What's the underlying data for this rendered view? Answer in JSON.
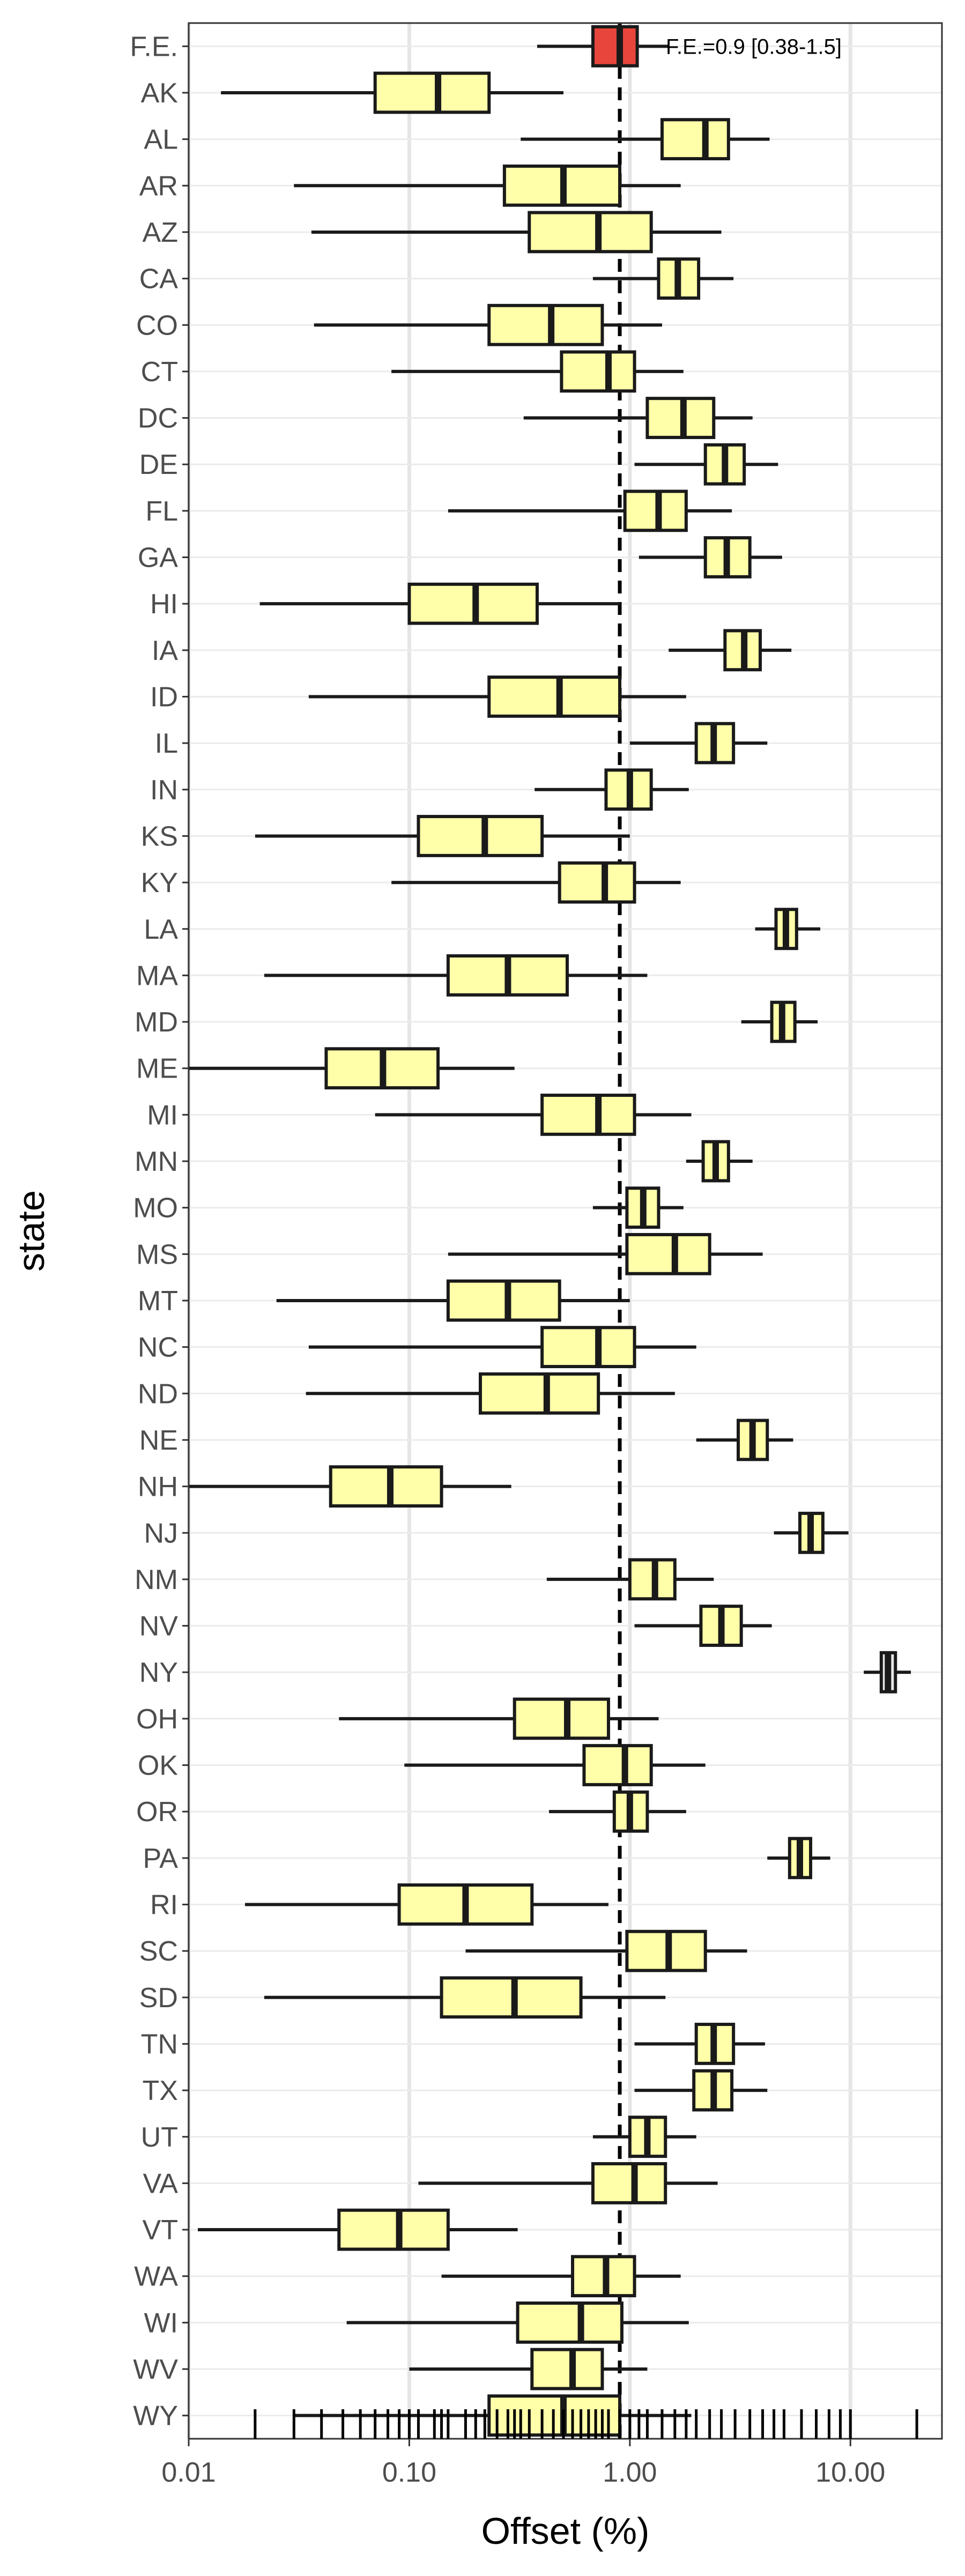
{
  "chart_data": {
    "type": "boxplot",
    "title": "",
    "xlabel": "Offset (%)",
    "ylabel": "state",
    "x_scale": "log10",
    "xlim": [
      0.01,
      26
    ],
    "x_ticks": [
      0.01,
      0.1,
      1,
      10
    ],
    "x_tick_labels": [
      "0.01",
      "0.10",
      "1.00",
      "10.00"
    ],
    "grid": true,
    "reference_line": {
      "x": 0.9,
      "style": "dashed"
    },
    "fe_annotation": "F.E.=0.9 [0.38-1.5]",
    "box_fill": "#ffffaa",
    "fe_fill": "#e8453c",
    "ny_fill": "#e8e8e8",
    "categories": [
      "F.E.",
      "AK",
      "AL",
      "AR",
      "AZ",
      "CA",
      "CO",
      "CT",
      "DC",
      "DE",
      "FL",
      "GA",
      "HI",
      "IA",
      "ID",
      "IL",
      "IN",
      "KS",
      "KY",
      "LA",
      "MA",
      "MD",
      "ME",
      "MI",
      "MN",
      "MO",
      "MS",
      "MT",
      "NC",
      "ND",
      "NE",
      "NH",
      "NJ",
      "NM",
      "NV",
      "NY",
      "OH",
      "OK",
      "OR",
      "PA",
      "RI",
      "SC",
      "SD",
      "TN",
      "TX",
      "UT",
      "VA",
      "VT",
      "WA",
      "WI",
      "WV",
      "WY"
    ],
    "boxes": [
      {
        "state": "F.E.",
        "whisker_low": 0.38,
        "q1": 0.68,
        "median": 0.9,
        "q3": 1.08,
        "whisker_high": 1.5
      },
      {
        "state": "AK",
        "whisker_low": 0.014,
        "q1": 0.07,
        "median": 0.135,
        "q3": 0.23,
        "whisker_high": 0.5
      },
      {
        "state": "AL",
        "whisker_low": 0.32,
        "q1": 1.4,
        "median": 2.2,
        "q3": 2.8,
        "whisker_high": 4.3
      },
      {
        "state": "AR",
        "whisker_low": 0.03,
        "q1": 0.27,
        "median": 0.5,
        "q3": 0.9,
        "whisker_high": 1.7
      },
      {
        "state": "AZ",
        "whisker_low": 0.036,
        "q1": 0.35,
        "median": 0.72,
        "q3": 1.25,
        "whisker_high": 2.6
      },
      {
        "state": "CA",
        "whisker_low": 0.68,
        "q1": 1.35,
        "median": 1.65,
        "q3": 2.05,
        "whisker_high": 2.95
      },
      {
        "state": "CO",
        "whisker_low": 0.037,
        "q1": 0.23,
        "median": 0.44,
        "q3": 0.75,
        "whisker_high": 1.4
      },
      {
        "state": "CT",
        "whisker_low": 0.083,
        "q1": 0.49,
        "median": 0.8,
        "q3": 1.05,
        "whisker_high": 1.75
      },
      {
        "state": "DC",
        "whisker_low": 0.33,
        "q1": 1.2,
        "median": 1.75,
        "q3": 2.4,
        "whisker_high": 3.6
      },
      {
        "state": "DE",
        "whisker_low": 1.05,
        "q1": 2.2,
        "median": 2.7,
        "q3": 3.3,
        "whisker_high": 4.7
      },
      {
        "state": "FL",
        "whisker_low": 0.15,
        "q1": 0.95,
        "median": 1.35,
        "q3": 1.8,
        "whisker_high": 2.9
      },
      {
        "state": "GA",
        "whisker_low": 1.1,
        "q1": 2.2,
        "median": 2.75,
        "q3": 3.5,
        "whisker_high": 4.9
      },
      {
        "state": "HI",
        "whisker_low": 0.021,
        "q1": 0.1,
        "median": 0.2,
        "q3": 0.38,
        "whisker_high": 0.9
      },
      {
        "state": "IA",
        "whisker_low": 1.5,
        "q1": 2.7,
        "median": 3.3,
        "q3": 3.9,
        "whisker_high": 5.4
      },
      {
        "state": "ID",
        "whisker_low": 0.035,
        "q1": 0.23,
        "median": 0.48,
        "q3": 0.9,
        "whisker_high": 1.8
      },
      {
        "state": "IL",
        "whisker_low": 1.0,
        "q1": 2.0,
        "median": 2.4,
        "q3": 2.95,
        "whisker_high": 4.2
      },
      {
        "state": "IN",
        "whisker_low": 0.37,
        "q1": 0.78,
        "median": 1.0,
        "q3": 1.25,
        "whisker_high": 1.85
      },
      {
        "state": "KS",
        "whisker_low": 0.02,
        "q1": 0.11,
        "median": 0.22,
        "q3": 0.4,
        "whisker_high": 1.0
      },
      {
        "state": "KY",
        "whisker_low": 0.083,
        "q1": 0.48,
        "median": 0.77,
        "q3": 1.05,
        "whisker_high": 1.7
      },
      {
        "state": "LA",
        "whisker_low": 3.7,
        "q1": 4.6,
        "median": 5.1,
        "q3": 5.7,
        "whisker_high": 7.3
      },
      {
        "state": "MA",
        "whisker_low": 0.022,
        "q1": 0.15,
        "median": 0.28,
        "q3": 0.52,
        "whisker_high": 1.2
      },
      {
        "state": "MD",
        "whisker_low": 3.2,
        "q1": 4.4,
        "median": 4.9,
        "q3": 5.6,
        "whisker_high": 7.1
      },
      {
        "state": "ME",
        "whisker_low": 0.01,
        "q1": 0.042,
        "median": 0.076,
        "q3": 0.135,
        "whisker_high": 0.3
      },
      {
        "state": "MI",
        "whisker_low": 0.07,
        "q1": 0.4,
        "median": 0.72,
        "q3": 1.05,
        "whisker_high": 1.9
      },
      {
        "state": "MN",
        "whisker_low": 1.8,
        "q1": 2.15,
        "median": 2.45,
        "q3": 2.8,
        "whisker_high": 3.6
      },
      {
        "state": "MO",
        "whisker_low": 0.68,
        "q1": 0.97,
        "median": 1.15,
        "q3": 1.35,
        "whisker_high": 1.75
      },
      {
        "state": "MS",
        "whisker_low": 0.15,
        "q1": 0.97,
        "median": 1.6,
        "q3": 2.3,
        "whisker_high": 4.0
      },
      {
        "state": "MT",
        "whisker_low": 0.025,
        "q1": 0.15,
        "median": 0.28,
        "q3": 0.48,
        "whisker_high": 1.0
      },
      {
        "state": "NC",
        "whisker_low": 0.035,
        "q1": 0.4,
        "median": 0.72,
        "q3": 1.05,
        "whisker_high": 2.0
      },
      {
        "state": "ND",
        "whisker_low": 0.034,
        "q1": 0.21,
        "median": 0.42,
        "q3": 0.72,
        "whisker_high": 1.6
      },
      {
        "state": "NE",
        "whisker_low": 2.0,
        "q1": 3.1,
        "median": 3.6,
        "q3": 4.2,
        "whisker_high": 5.5
      },
      {
        "state": "NH",
        "whisker_low": 0.01,
        "q1": 0.044,
        "median": 0.082,
        "q3": 0.14,
        "whisker_high": 0.29
      },
      {
        "state": "NJ",
        "whisker_low": 4.5,
        "q1": 5.9,
        "median": 6.6,
        "q3": 7.5,
        "whisker_high": 9.8
      },
      {
        "state": "NM",
        "whisker_low": 0.42,
        "q1": 1.0,
        "median": 1.3,
        "q3": 1.6,
        "whisker_high": 2.4
      },
      {
        "state": "NV",
        "whisker_low": 1.05,
        "q1": 2.1,
        "median": 2.6,
        "q3": 3.2,
        "whisker_high": 4.4
      },
      {
        "state": "NY",
        "whisker_low": 11.5,
        "q1": 13.8,
        "median": 14.8,
        "q3": 16.0,
        "whisker_high": 18.8
      },
      {
        "state": "OH",
        "whisker_low": 0.048,
        "q1": 0.3,
        "median": 0.52,
        "q3": 0.8,
        "whisker_high": 1.35
      },
      {
        "state": "OK",
        "whisker_low": 0.095,
        "q1": 0.62,
        "median": 0.95,
        "q3": 1.25,
        "whisker_high": 2.2
      },
      {
        "state": "OR",
        "whisker_low": 0.43,
        "q1": 0.85,
        "median": 1.0,
        "q3": 1.2,
        "whisker_high": 1.8
      },
      {
        "state": "PA",
        "whisker_low": 4.2,
        "q1": 5.3,
        "median": 5.9,
        "q3": 6.6,
        "whisker_high": 8.1
      },
      {
        "state": "RI",
        "whisker_low": 0.018,
        "q1": 0.09,
        "median": 0.18,
        "q3": 0.36,
        "whisker_high": 0.8
      },
      {
        "state": "SC",
        "whisker_low": 0.18,
        "q1": 0.97,
        "median": 1.5,
        "q3": 2.2,
        "whisker_high": 3.4
      },
      {
        "state": "SD",
        "whisker_low": 0.022,
        "q1": 0.14,
        "median": 0.3,
        "q3": 0.6,
        "whisker_high": 1.45
      },
      {
        "state": "TN",
        "whisker_low": 1.05,
        "q1": 2.0,
        "median": 2.4,
        "q3": 2.95,
        "whisker_high": 4.1
      },
      {
        "state": "TX",
        "whisker_low": 1.05,
        "q1": 1.95,
        "median": 2.4,
        "q3": 2.9,
        "whisker_high": 4.2
      },
      {
        "state": "UT",
        "whisker_low": 0.68,
        "q1": 1.0,
        "median": 1.2,
        "q3": 1.45,
        "whisker_high": 2.0
      },
      {
        "state": "VA",
        "whisker_low": 0.11,
        "q1": 0.68,
        "median": 1.05,
        "q3": 1.45,
        "whisker_high": 2.5
      },
      {
        "state": "VT",
        "whisker_low": 0.011,
        "q1": 0.048,
        "median": 0.09,
        "q3": 0.15,
        "whisker_high": 0.31
      },
      {
        "state": "WA",
        "whisker_low": 0.14,
        "q1": 0.55,
        "median": 0.78,
        "q3": 1.05,
        "whisker_high": 1.7
      },
      {
        "state": "WI",
        "whisker_low": 0.052,
        "q1": 0.31,
        "median": 0.6,
        "q3": 0.92,
        "whisker_high": 1.85
      },
      {
        "state": "WV",
        "whisker_low": 0.1,
        "q1": 0.36,
        "median": 0.55,
        "q3": 0.75,
        "whisker_high": 1.2
      },
      {
        "state": "WY",
        "whisker_low": 0.03,
        "q1": 0.23,
        "median": 0.5,
        "q3": 0.9,
        "whisker_high": 1.9
      }
    ],
    "rug_values": [
      0.02,
      0.03,
      0.04,
      0.05,
      0.06,
      0.07,
      0.08,
      0.09,
      0.1,
      0.11,
      0.13,
      0.14,
      0.15,
      0.18,
      0.2,
      0.22,
      0.25,
      0.28,
      0.3,
      0.32,
      0.35,
      0.4,
      0.45,
      0.5,
      0.55,
      0.6,
      0.65,
      0.7,
      0.75,
      0.8,
      0.9,
      1.0,
      1.1,
      1.2,
      1.4,
      1.6,
      1.8,
      2.0,
      2.3,
      2.6,
      3.0,
      3.5,
      4.0,
      4.5,
      5.0,
      6.0,
      7.0,
      8.0,
      9.0,
      10.0,
      20.0
    ]
  }
}
